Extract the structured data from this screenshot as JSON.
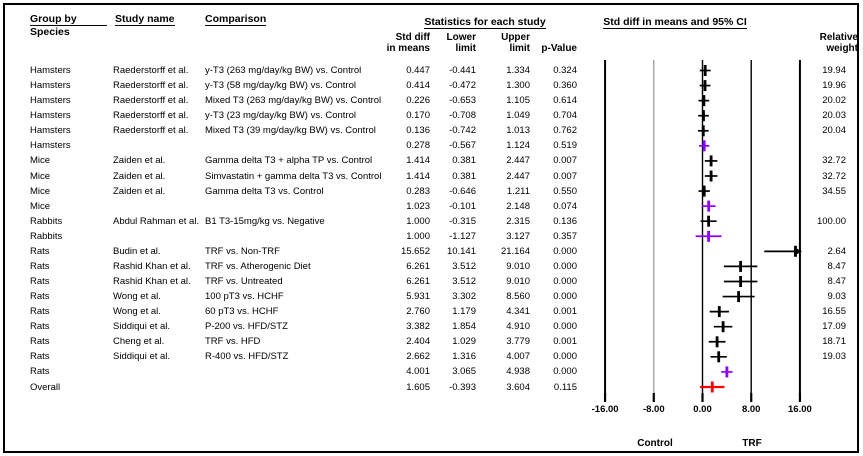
{
  "header": {
    "group_by_line1": "Group by",
    "group_by_line2": "Species",
    "study_name": "Study name",
    "comparison": "Comparison",
    "stats_title": "Statistics for each study",
    "plot_title": "Std diff in means and 95% CI",
    "col_std_diff_l1": "Std diff",
    "col_std_diff_l2": "in means",
    "col_lower_l1": "Lower",
    "col_lower_l2": "limit",
    "col_upper_l1": "Upper",
    "col_upper_l2": "limit",
    "col_p": "p-Value",
    "col_weight_l1": "Relative",
    "col_weight_l2": "weight"
  },
  "colors": {
    "study_marker": "#000000",
    "summary_marker": "#8B00FF",
    "overall_marker": "#FF0000",
    "grid_minor_gray": "#a0a0a0",
    "grid_black": "#000000"
  },
  "chart_data": {
    "type": "scatter",
    "subtype": "forest-plot",
    "title": "Std diff in means and 95% CI",
    "xlabel_group": "Statistics for each study",
    "xlim": [
      -16,
      16
    ],
    "x_ticks": [
      -16,
      -8,
      0,
      8,
      16
    ],
    "x_tick_labels": [
      "-16.00",
      "-8.00",
      "0.00",
      "8.00",
      "16.00"
    ],
    "x_axis_annotations": {
      "left": "Control",
      "right": "TRF"
    },
    "grid": "vertical-reference-lines",
    "legend_position": "none",
    "rows": [
      {
        "species": "Hamsters",
        "study": "Raederstorff et al.",
        "comparison": "y-T3 (263 mg/day/kg BW) vs. Control",
        "std_diff": "0.447",
        "lower": "-0.441",
        "upper": "1.334",
        "p": "0.324",
        "weight": "19.94",
        "kind": "study"
      },
      {
        "species": "Hamsters",
        "study": "Raederstorff et al.",
        "comparison": "y-T3 (58 mg/day/kg BW) vs. Control",
        "std_diff": "0.414",
        "lower": "-0.472",
        "upper": "1.300",
        "p": "0.360",
        "weight": "19.96",
        "kind": "study"
      },
      {
        "species": "Hamsters",
        "study": "Raederstorff et al.",
        "comparison": "Mixed T3 (263 mg/day/kg BW) vs. Control",
        "std_diff": "0.226",
        "lower": "-0.653",
        "upper": "1.105",
        "p": "0.614",
        "weight": "20.02",
        "kind": "study"
      },
      {
        "species": "Hamsters",
        "study": "Raederstorff et al.",
        "comparison": "y-T3 (23 mg/day/kg BW) vs. Control",
        "std_diff": "0.170",
        "lower": "-0.708",
        "upper": "1.049",
        "p": "0.704",
        "weight": "20.03",
        "kind": "study"
      },
      {
        "species": "Hamsters",
        "study": "Raederstorff et al.",
        "comparison": "Mixed T3 (39 mg/day/kg BW) vs. Control",
        "std_diff": "0.136",
        "lower": "-0.742",
        "upper": "1.013",
        "p": "0.762",
        "weight": "20.04",
        "kind": "study"
      },
      {
        "species": "Hamsters",
        "study": "",
        "comparison": "",
        "std_diff": "0.278",
        "lower": "-0.567",
        "upper": "1.124",
        "p": "0.519",
        "weight": "",
        "kind": "summary"
      },
      {
        "species": "Mice",
        "study": "Zaiden et al.",
        "comparison": "Gamma delta T3 + alpha TP vs. Control",
        "std_diff": "1.414",
        "lower": "0.381",
        "upper": "2.447",
        "p": "0.007",
        "weight": "32.72",
        "kind": "study"
      },
      {
        "species": "Mice",
        "study": "Zaiden et al.",
        "comparison": "Simvastatin + gamma delta T3 vs. Control",
        "std_diff": "1.414",
        "lower": "0.381",
        "upper": "2.447",
        "p": "0.007",
        "weight": "32.72",
        "kind": "study"
      },
      {
        "species": "Mice",
        "study": "Zaiden et al.",
        "comparison": "Gamma delta T3 vs. Control",
        "std_diff": "0.283",
        "lower": "-0.646",
        "upper": "1.211",
        "p": "0.550",
        "weight": "34.55",
        "kind": "study"
      },
      {
        "species": "Mice",
        "study": "",
        "comparison": "",
        "std_diff": "1.023",
        "lower": "-0.101",
        "upper": "2.148",
        "p": "0.074",
        "weight": "",
        "kind": "summary"
      },
      {
        "species": "Rabbits",
        "study": "Abdul Rahman et al.",
        "comparison": "B1 T3-15mg/kg vs. Negative",
        "std_diff": "1.000",
        "lower": "-0.315",
        "upper": "2.315",
        "p": "0.136",
        "weight": "100.00",
        "kind": "study"
      },
      {
        "species": "Rabbits",
        "study": "",
        "comparison": "",
        "std_diff": "1.000",
        "lower": "-1.127",
        "upper": "3.127",
        "p": "0.357",
        "weight": "",
        "kind": "summary"
      },
      {
        "species": "Rats",
        "study": "Budin et al.",
        "comparison": "TRF vs. Non-TRF",
        "std_diff": "15.652",
        "lower": "10.141",
        "upper": "21.164",
        "p": "0.000",
        "weight": "2.64",
        "kind": "study"
      },
      {
        "species": "Rats",
        "study": "Rashid Khan et al.",
        "comparison": "TRF vs. Atherogenic Diet",
        "std_diff": "6.261",
        "lower": "3.512",
        "upper": "9.010",
        "p": "0.000",
        "weight": "8.47",
        "kind": "study"
      },
      {
        "species": "Rats",
        "study": "Rashid Khan et al.",
        "comparison": "TRF vs. Untreated",
        "std_diff": "6.261",
        "lower": "3.512",
        "upper": "9.010",
        "p": "0.000",
        "weight": "8.47",
        "kind": "study"
      },
      {
        "species": "Rats",
        "study": "Wong et al.",
        "comparison": "100 pT3 vs. HCHF",
        "std_diff": "5.931",
        "lower": "3.302",
        "upper": "8.560",
        "p": "0.000",
        "weight": "9.03",
        "kind": "study"
      },
      {
        "species": "Rats",
        "study": "Wong et al.",
        "comparison": "60 pT3 vs. HCHF",
        "std_diff": "2.760",
        "lower": "1.179",
        "upper": "4.341",
        "p": "0.001",
        "weight": "16.55",
        "kind": "study"
      },
      {
        "species": "Rats",
        "study": "Siddiqui et al.",
        "comparison": "P-200 vs. HFD/STZ",
        "std_diff": "3.382",
        "lower": "1.854",
        "upper": "4.910",
        "p": "0.000",
        "weight": "17.09",
        "kind": "study"
      },
      {
        "species": "Rats",
        "study": "Cheng et al.",
        "comparison": "TRF vs. HFD",
        "std_diff": "2.404",
        "lower": "1.029",
        "upper": "3.779",
        "p": "0.001",
        "weight": "18.71",
        "kind": "study"
      },
      {
        "species": "Rats",
        "study": "Siddiqui et al.",
        "comparison": "R-400 vs. HFD/STZ",
        "std_diff": "2.662",
        "lower": "1.316",
        "upper": "4.007",
        "p": "0.000",
        "weight": "19.03",
        "kind": "study"
      },
      {
        "species": "Rats",
        "study": "",
        "comparison": "",
        "std_diff": "4.001",
        "lower": "3.065",
        "upper": "4.938",
        "p": "0.000",
        "weight": "",
        "kind": "summary"
      },
      {
        "species": "Overall",
        "study": "",
        "comparison": "",
        "std_diff": "1.605",
        "lower": "-0.393",
        "upper": "3.604",
        "p": "0.115",
        "weight": "",
        "kind": "overall"
      }
    ]
  }
}
